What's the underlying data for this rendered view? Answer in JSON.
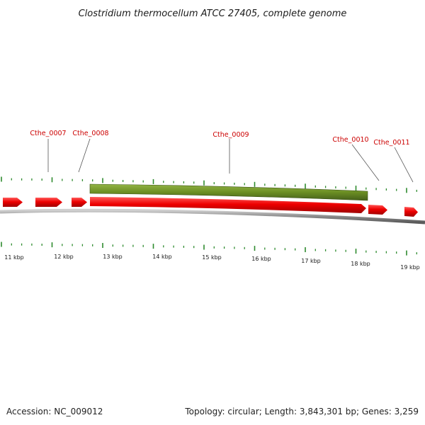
{
  "title": "Clostridium thermocellum ATCC 27405, complete genome",
  "footer": {
    "accession": "Accession: NC_009012",
    "summary": "Topology: circular; Length: 3,843,301 bp; Genes: 3,259"
  },
  "colors": {
    "forward_gene": "#ee0000",
    "highlight_gene": "#6b8e23",
    "tick": "#2e8b2e",
    "label": "#cc0000",
    "backbone": "#888888"
  },
  "gene_labels": [
    "Cthe_0007",
    "Cthe_0008",
    "Cthe_0009",
    "Cthe_0010",
    "Cthe_0011"
  ],
  "kbp_labels": [
    "11 kbp",
    "12 kbp",
    "13 kbp",
    "14 kbp",
    "15 kbp",
    "16 kbp",
    "17 kbp",
    "18 kbp",
    "19 kbp"
  ]
}
